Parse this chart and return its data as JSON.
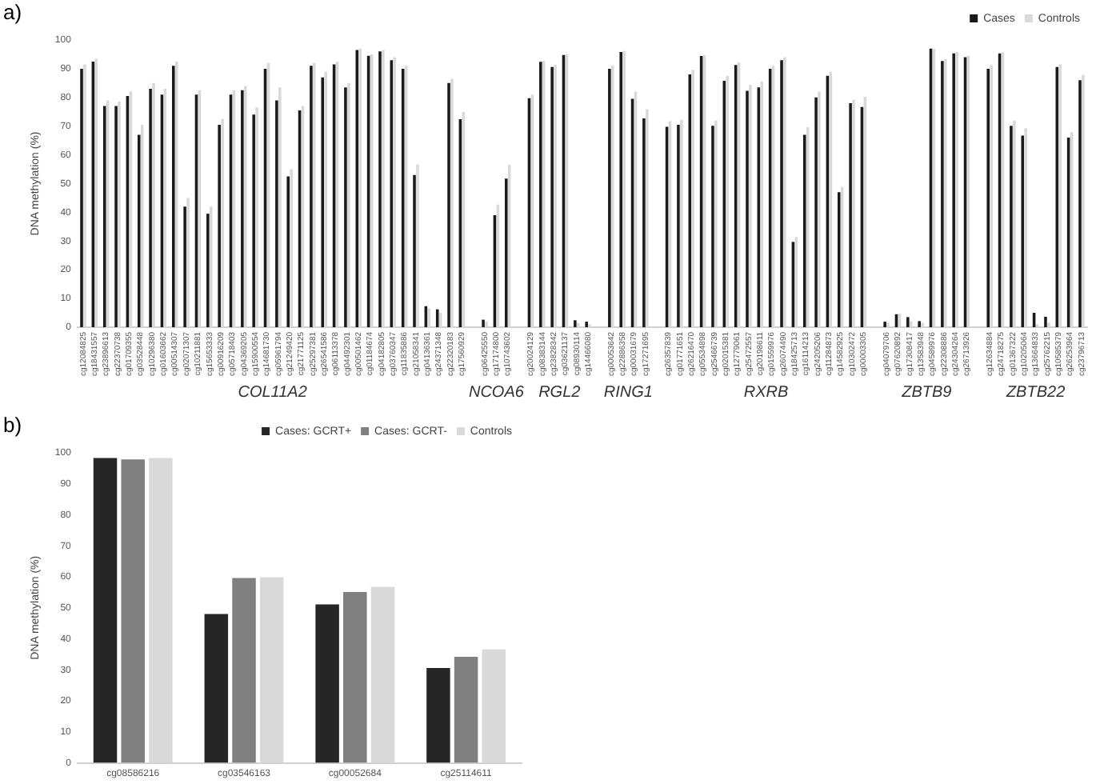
{
  "chart_data": [
    {
      "type": "bar",
      "title": "a)",
      "ylabel": "DNA methylation (%)",
      "legend": "top right",
      "ylim": [
        0,
        100
      ],
      "yticks": [
        0,
        10,
        20,
        30,
        40,
        50,
        60,
        70,
        80,
        90,
        100
      ],
      "categories": [
        "cg12084825",
        "cg18431557",
        "cg23896613",
        "cg22370738",
        "cg01709355",
        "cg03528448",
        "cg10296380",
        "cg01603662",
        "cg00514307",
        "cg02071307",
        "cg10211881",
        "cg15653333",
        "cg00916209",
        "cg05718403",
        "cg04369205",
        "cg15900554",
        "cg14681730",
        "cg05961794",
        "cg21249420",
        "cg21771125",
        "cg25297381",
        "cg26541586",
        "cg06113378",
        "cg04492301",
        "cg00501462",
        "cg01184674",
        "cg04182805",
        "cg03760347",
        "cg11835886",
        "cg21058341",
        "cg04136361",
        "cg24371348",
        "cg22320183",
        "cg17560929",
        null,
        "cg06425550",
        "cg17174800",
        "cg10743602",
        null,
        "cg20024129",
        "cg08383144",
        "cg23828342",
        "cg03621137",
        "cg08930114",
        "cg14466080",
        null,
        "cg00053642",
        "cg22886358",
        "cg00031679",
        "cg17271695",
        null,
        "cg26357839",
        "cg01771651",
        "cg26216470",
        "cg05534898",
        "cg25466739",
        "cg02015381",
        "cg12779061",
        "cg25472557",
        "cg20198611",
        "cg01559976",
        "cg26074490",
        "cg18425713",
        "cg16114213",
        "cg24205206",
        "cg11284873",
        "cg14582925",
        "cg10302472",
        "cg00003305",
        null,
        "cg04079706",
        "cg07620892",
        "cg17308417",
        "cg13583948",
        "cg04589976",
        "cg22308886",
        "cg24304264",
        "cg26713926",
        null,
        "cg12634884",
        "cg24718275",
        "cg01367322",
        "cg10205064",
        "cg13664833",
        "cg25762215",
        "cg10585379",
        "cg26253964",
        "cg23796713"
      ],
      "series": [
        {
          "name": "Cases",
          "color": "#1a1a1a",
          "values": [
            90,
            92.5,
            77,
            77,
            80.5,
            67,
            83,
            81,
            91,
            42,
            81,
            39.5,
            70.5,
            81,
            82.5,
            74,
            90,
            79,
            52.5,
            75.5,
            91,
            87,
            91.5,
            83.5,
            96.5,
            94.5,
            96,
            93,
            90,
            53,
            7.3,
            6.2,
            85,
            72.4,
            null,
            2.6,
            39,
            51.7,
            null,
            79.7,
            92.4,
            90.6,
            94.8,
            2.4,
            1.9,
            null,
            90,
            95.8,
            79.5,
            72.7,
            null,
            69.8,
            70.5,
            88,
            94.4,
            70.1,
            85.8,
            91.3,
            82.3,
            83.5,
            90,
            93,
            29.7,
            67,
            80,
            87.5,
            47,
            78,
            76.7,
            null,
            1.9,
            4.5,
            3.5,
            2.1,
            97,
            92.7,
            95.3,
            94,
            null,
            90,
            95.3,
            70.1,
            66.7,
            5,
            3.6,
            90.6,
            66,
            86
          ]
        },
        {
          "name": "Controls",
          "color": "#d9d9d9",
          "values": [
            91.5,
            93.5,
            79,
            78.5,
            82,
            70.5,
            85,
            83,
            92.5,
            45,
            82.5,
            42,
            72.5,
            82.5,
            84,
            76.5,
            92,
            83.5,
            55,
            77,
            92,
            89,
            92.5,
            85,
            97,
            95,
            96.5,
            94,
            91,
            56.6,
            6.5,
            5,
            86.5,
            75,
            null,
            2,
            42.7,
            56.6,
            null,
            81,
            92.7,
            91.3,
            95,
            1.5,
            1,
            null,
            91,
            96.2,
            82,
            75.9,
            null,
            71.7,
            72.2,
            89.6,
            94.8,
            71.9,
            87.5,
            92.2,
            84.4,
            85.6,
            91,
            94,
            31.4,
            69.6,
            82,
            88.9,
            48.8,
            79.2,
            80.2,
            null,
            1.5,
            4.7,
            2,
            1.5,
            96.9,
            93.4,
            95.8,
            94.6,
            null,
            91.3,
            95.7,
            71.9,
            69.3,
            1,
            1.5,
            91.5,
            67.9,
            87.8
          ]
        }
      ],
      "annotations": [
        "COL11A2",
        "NCOA6",
        "RGL2",
        "RING1",
        "RXRB",
        "ZBTB9",
        "ZBTB22"
      ]
    },
    {
      "type": "bar",
      "title": "b)",
      "ylabel": "DNA methylation (%)",
      "legend": "top right",
      "ylim": [
        0,
        100
      ],
      "yticks": [
        0,
        10,
        20,
        30,
        40,
        50,
        60,
        70,
        80,
        90,
        100
      ],
      "categories": [
        "cg08586216",
        "cg03546163",
        "cg00052684",
        "cg25114611"
      ],
      "series": [
        {
          "name": "Cases: GCRT+",
          "color": "#262626",
          "values": [
            98.3,
            48,
            51.1,
            30.6
          ]
        },
        {
          "name": "Cases: GCRT-",
          "color": "#808080",
          "values": [
            97.9,
            59.6,
            55.1,
            34.2
          ]
        },
        {
          "name": "Controls",
          "color": "#d9d9d9",
          "values": [
            98.3,
            59.9,
            56.8,
            36.6
          ]
        }
      ]
    }
  ]
}
